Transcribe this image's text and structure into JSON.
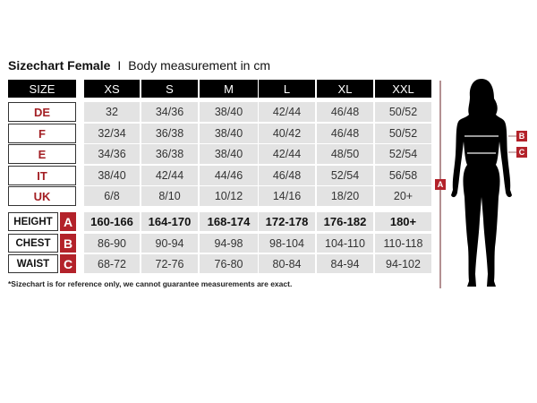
{
  "title": {
    "bold": "Sizechart Female",
    "separator": "I",
    "subtitle": "Body measurement in cm"
  },
  "header": [
    "SIZE",
    "XS",
    "S",
    "M",
    "L",
    "XL",
    "XXL"
  ],
  "size_rows": [
    {
      "label": "DE",
      "values": [
        "32",
        "34/36",
        "38/40",
        "42/44",
        "46/48",
        "50/52"
      ]
    },
    {
      "label": "F",
      "values": [
        "32/34",
        "36/38",
        "38/40",
        "40/42",
        "46/48",
        "50/52"
      ]
    },
    {
      "label": "E",
      "values": [
        "34/36",
        "36/38",
        "38/40",
        "42/44",
        "48/50",
        "52/54"
      ]
    },
    {
      "label": "IT",
      "values": [
        "38/40",
        "42/44",
        "44/46",
        "46/48",
        "52/54",
        "56/58"
      ]
    },
    {
      "label": "UK",
      "values": [
        "6/8",
        "8/10",
        "10/12",
        "14/16",
        "18/20",
        "20+"
      ]
    }
  ],
  "measure_rows": [
    {
      "label": "HEIGHT",
      "letter": "A",
      "values": [
        "160-166",
        "164-170",
        "168-174",
        "172-178",
        "176-182",
        "180+"
      ]
    },
    {
      "label": "CHEST",
      "letter": "B",
      "values": [
        "86-90",
        "90-94",
        "94-98",
        "98-104",
        "104-110",
        "110-118"
      ]
    },
    {
      "label": "WAIST",
      "letter": "C",
      "values": [
        "68-72",
        "72-76",
        "76-80",
        "80-84",
        "84-94",
        "94-102"
      ]
    }
  ],
  "footnote": "*Sizechart is for reference only, we cannot guarantee measurements are exact.",
  "figure": {
    "badge_a": "A",
    "badge_b": "B",
    "badge_c": "C"
  },
  "colors": {
    "accent": "#b3222a",
    "header": "#000000",
    "cell": "#e3e3e3"
  }
}
